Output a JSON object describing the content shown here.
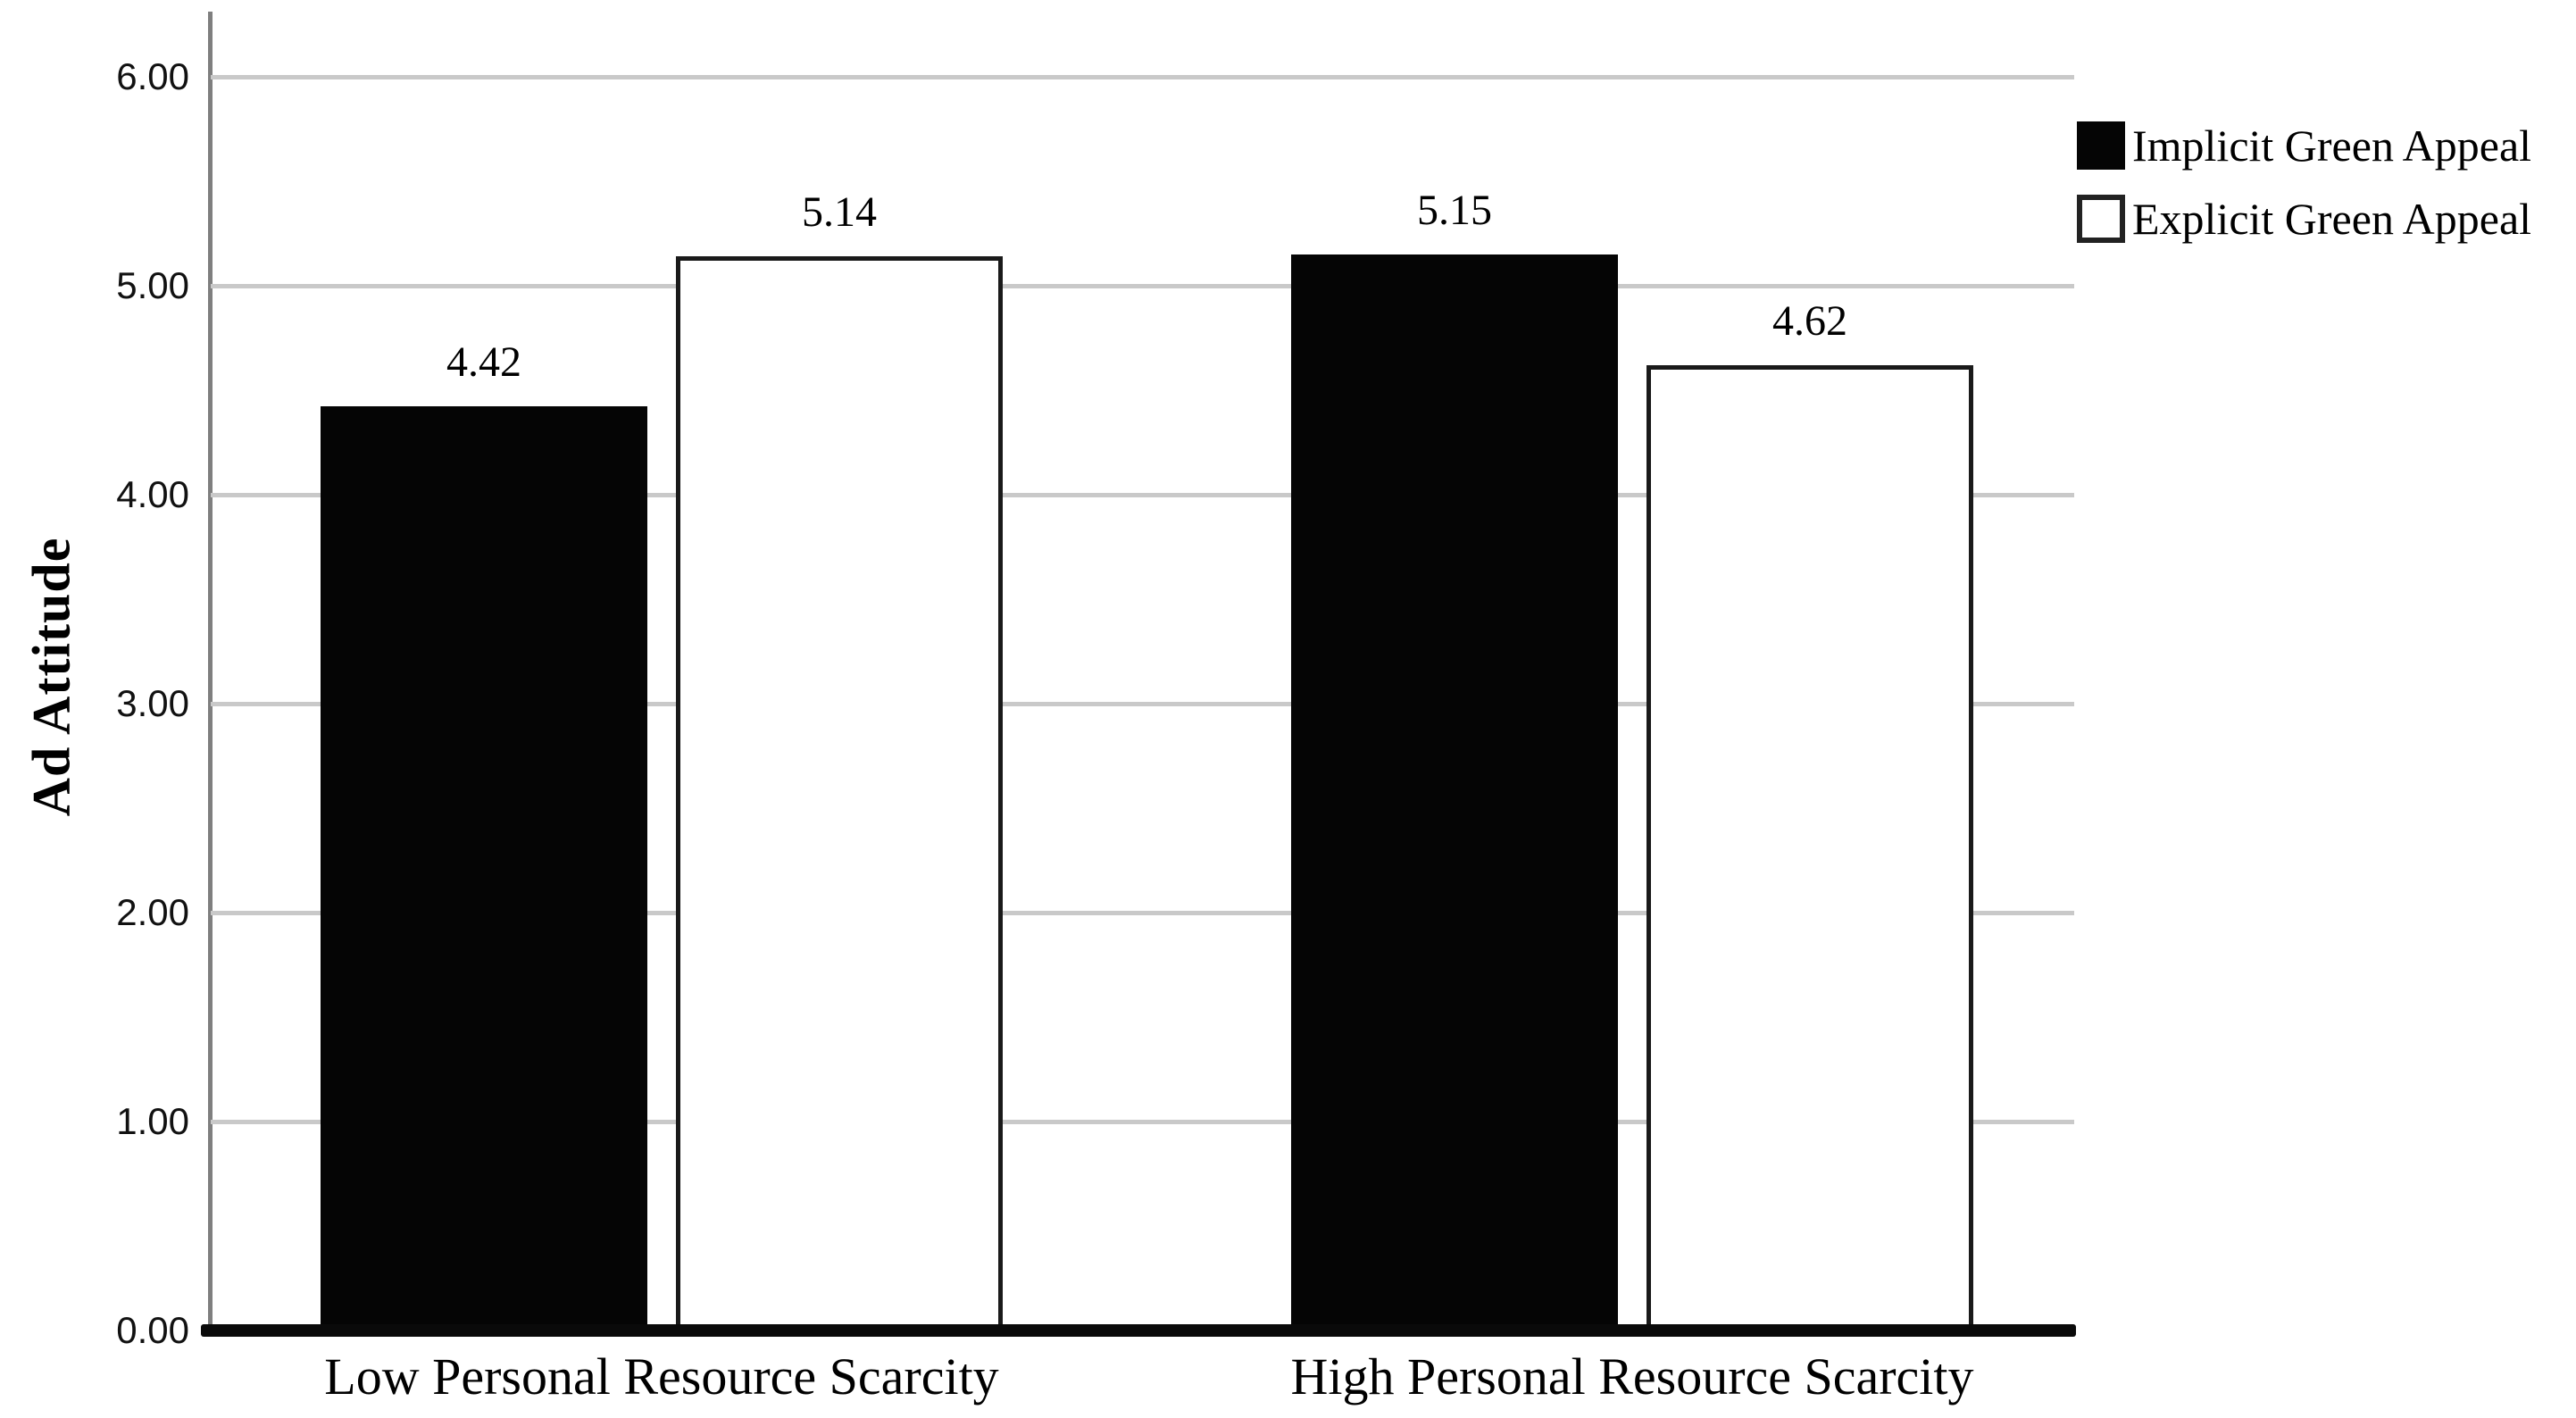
{
  "chart_data": {
    "type": "bar",
    "title": "",
    "xlabel": "",
    "ylabel": "Ad Attitude",
    "categories": [
      "Low Personal Resource Scarcity",
      "High Personal Resource Scarcity"
    ],
    "series": [
      {
        "name": "Implicit Green Appeal",
        "fill": "#050505",
        "values": [
          4.42,
          5.15
        ],
        "data_labels": [
          "4.42",
          "5.15"
        ]
      },
      {
        "name": "Explicit Green Appeal",
        "fill": "#ffffff",
        "values": [
          5.14,
          4.62
        ],
        "data_labels": [
          "5.14",
          "4.62"
        ]
      }
    ],
    "yticks": [
      {
        "value": 0,
        "label": "0.00"
      },
      {
        "value": 1,
        "label": "1.00"
      },
      {
        "value": 2,
        "label": "2.00"
      },
      {
        "value": 3,
        "label": "3.00"
      },
      {
        "value": 4,
        "label": "4.00"
      },
      {
        "value": 5,
        "label": "5.00"
      },
      {
        "value": 6,
        "label": "6.00"
      }
    ],
    "ylim": [
      0,
      6.31
    ],
    "grid": "horizontal",
    "legend_position": "top-right-outside",
    "colors": {
      "gridline": "#c9c9c9",
      "y_axis_line": "#7f7f7f",
      "x_baseline": "#0a0a0a",
      "bar_black": "#050505",
      "bar_white": "#ffffff",
      "bar_border": "#1a1a1a",
      "background": "#ffffff"
    }
  }
}
